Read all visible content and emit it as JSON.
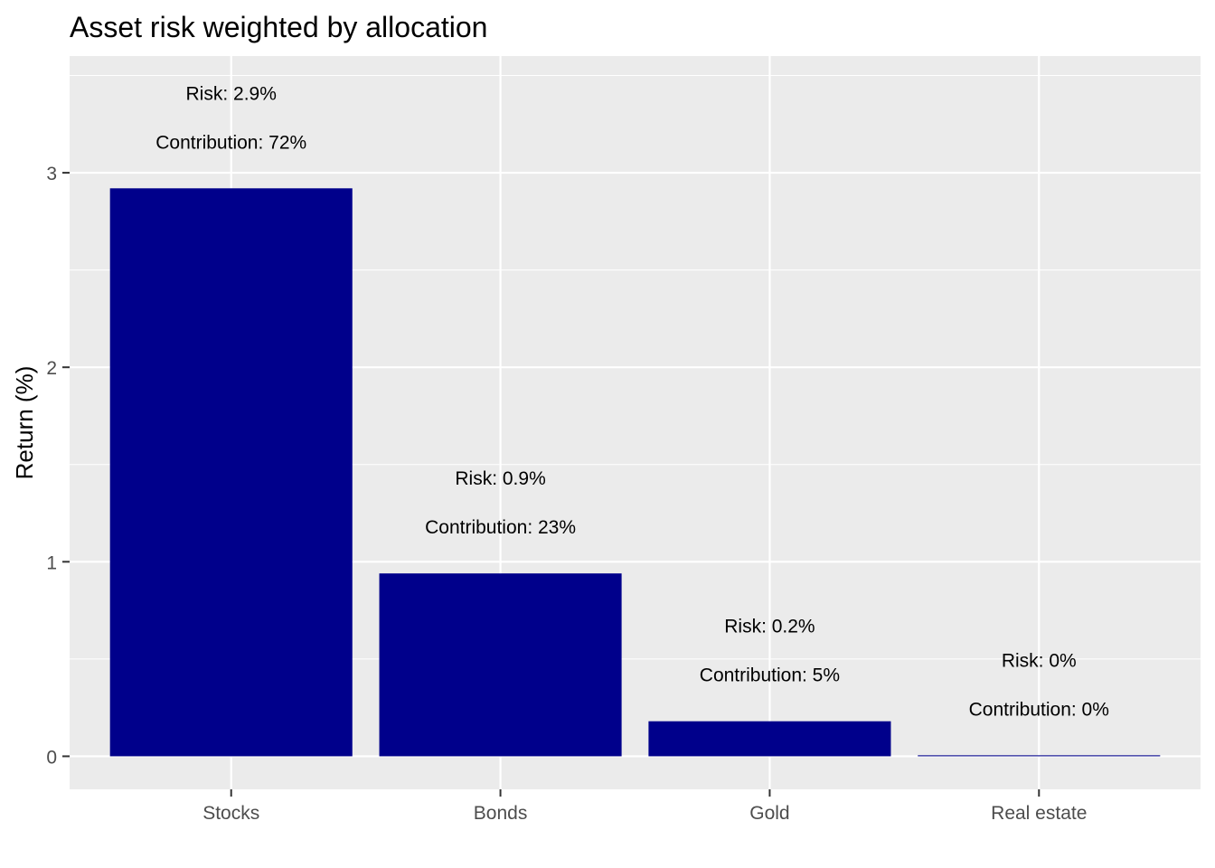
{
  "chart_data": {
    "type": "bar",
    "title": "Asset risk weighted by allocation",
    "xlabel": "",
    "ylabel": "Return (%)",
    "categories": [
      "Stocks",
      "Bonds",
      "Gold",
      "Real estate"
    ],
    "values": [
      2.92,
      0.94,
      0.18,
      0.005
    ],
    "risk_labels": [
      "Risk: 2.9%",
      "Risk: 0.9%",
      "Risk: 0.2%",
      "Risk: 0%"
    ],
    "contribution_labels": [
      "Contribution: 72%",
      "Contribution: 23%",
      "Contribution: 5%",
      "Contribution: 0%"
    ],
    "yticks": [
      0,
      1,
      2,
      3
    ],
    "ytick_labels": [
      "0",
      "1",
      "2",
      "3"
    ],
    "ylim": [
      -0.17,
      3.6
    ],
    "grid": true,
    "legend": "none",
    "colors": {
      "bar": "#00008b",
      "panel": "#ebebeb",
      "grid": "#ffffff"
    }
  }
}
